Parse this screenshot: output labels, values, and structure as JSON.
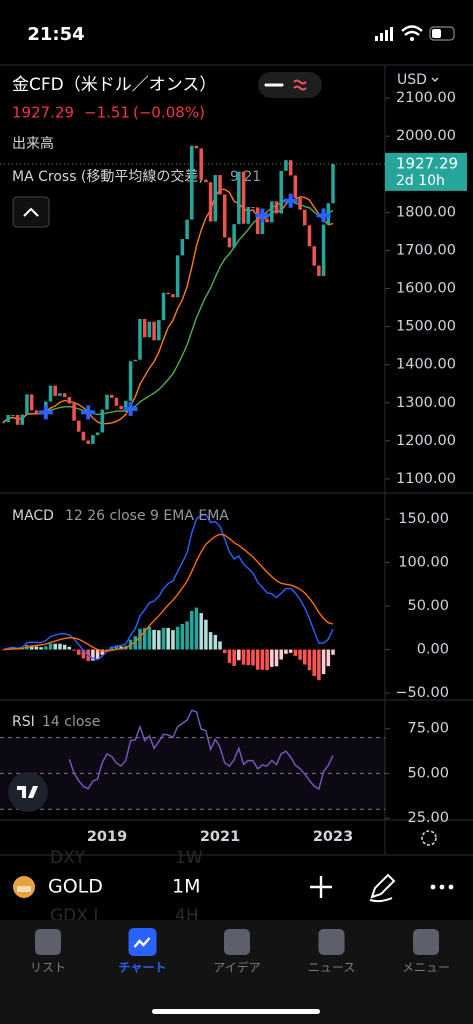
{
  "status_bar": {
    "time": "21:54"
  },
  "header": {
    "symbol": "金CFD（米ドル／オンス）",
    "price": "1927.29",
    "change": "−1.51",
    "change_pct": "(−0.08%)",
    "volume_label": "出来高",
    "indicator": "MA Cross (移動平均線の交差)",
    "indicator_params": "9 21",
    "currency": "USD"
  },
  "chart_data": [
    {
      "type": "candlestick",
      "x": [
        2017.167,
        2017.25,
        2017.333,
        2017.417,
        2017.5,
        2017.583,
        2017.667,
        2017.75,
        2017.833,
        2017.917,
        2018,
        2018.083,
        2018.167,
        2018.25,
        2018.333,
        2018.417,
        2018.5,
        2018.583,
        2018.667,
        2018.75,
        2018.833,
        2018.917,
        2019,
        2019.083,
        2019.167,
        2019.25,
        2019.333,
        2019.417,
        2019.5,
        2019.583,
        2019.667,
        2019.75,
        2019.833,
        2019.917,
        2020,
        2020.083,
        2020.167,
        2020.25,
        2020.333,
        2020.417,
        2020.5,
        2020.583,
        2020.667,
        2020.75,
        2020.833,
        2020.917,
        2021,
        2021.083,
        2021.167,
        2021.25,
        2021.333,
        2021.417,
        2021.5,
        2021.583,
        2021.667,
        2021.75,
        2021.833,
        2021.917,
        2022,
        2022.083,
        2022.167,
        2022.25,
        2022.333,
        2022.417,
        2022.5,
        2022.583,
        2022.667,
        2022.75,
        2022.833,
        2022.917,
        2023
      ],
      "values": [
        1249,
        1268,
        1268,
        1242,
        1269,
        1322,
        1280,
        1271,
        1275,
        1303,
        1345,
        1318,
        1325,
        1315,
        1298,
        1253,
        1224,
        1201,
        1192,
        1215,
        1222,
        1282,
        1321,
        1313,
        1292,
        1283,
        1305,
        1409,
        1413,
        1520,
        1472,
        1513,
        1464,
        1517,
        1589,
        1585,
        1577,
        1687,
        1730,
        1781,
        1975,
        1968,
        1886,
        1879,
        1776,
        1898,
        1847,
        1734,
        1708,
        1769,
        1907,
        1770,
        1814,
        1813,
        1743,
        1783,
        1774,
        1829,
        1797,
        1909,
        1937,
        1897,
        1838,
        1807,
        1766,
        1711,
        1660,
        1633,
        1768,
        1824,
        1927.29
      ],
      "xlim": [
        2017.106,
        2023.92
      ],
      "xticks": [
        2019,
        2021,
        2023
      ],
      "ylim": [
        1063,
        2187
      ],
      "yticks": [
        {
          "value": 1100,
          "label": "1100.00"
        },
        {
          "value": 1200,
          "label": "1200.00"
        },
        {
          "value": 1300,
          "label": "1300.00"
        },
        {
          "value": 1400,
          "label": "1400.00"
        },
        {
          "value": 1500,
          "label": "1500.00"
        },
        {
          "value": 1600,
          "label": "1600.00"
        },
        {
          "value": 1700,
          "label": "1700.00"
        },
        {
          "value": 1800,
          "label": "1800.00"
        },
        {
          "value": 1900,
          "label": "1900.00"
        },
        {
          "value": 2000,
          "label": "2000.00"
        },
        {
          "value": 2100,
          "label": "2100.00"
        }
      ],
      "last_price": {
        "value": 1927.29,
        "label": "1927.29"
      },
      "countdown": "2d 10h",
      "ma_periods": [
        9,
        21
      ]
    },
    {
      "type": "macd",
      "title": "MACD",
      "params": "12 26 close 9 EMA EMA",
      "ylim": [
        -58,
        180
      ],
      "yticks": [
        {
          "value": -50,
          "label": "−50.00"
        },
        {
          "value": 0,
          "label": "0.00"
        },
        {
          "value": 50,
          "label": "50.00"
        },
        {
          "value": 100,
          "label": "100.00"
        },
        {
          "value": 150,
          "label": "150.00"
        }
      ]
    },
    {
      "type": "rsi",
      "title": "RSI",
      "params": "14 close",
      "ylim": [
        24,
        91
      ],
      "yticks": [
        {
          "value": 25,
          "label": "25.00"
        },
        {
          "value": 50,
          "label": "50.00"
        },
        {
          "value": 75,
          "label": "75.00"
        }
      ],
      "levels": [
        30,
        50,
        70
      ]
    }
  ],
  "toolbar": {
    "symbol": "GOLD",
    "interval": "1M",
    "ghost": [
      "DXY",
      "1W",
      "GDX I",
      "4H"
    ]
  },
  "tabs": [
    "リスト",
    "チャート",
    "アイデア",
    "ニュース",
    "メニュー"
  ]
}
